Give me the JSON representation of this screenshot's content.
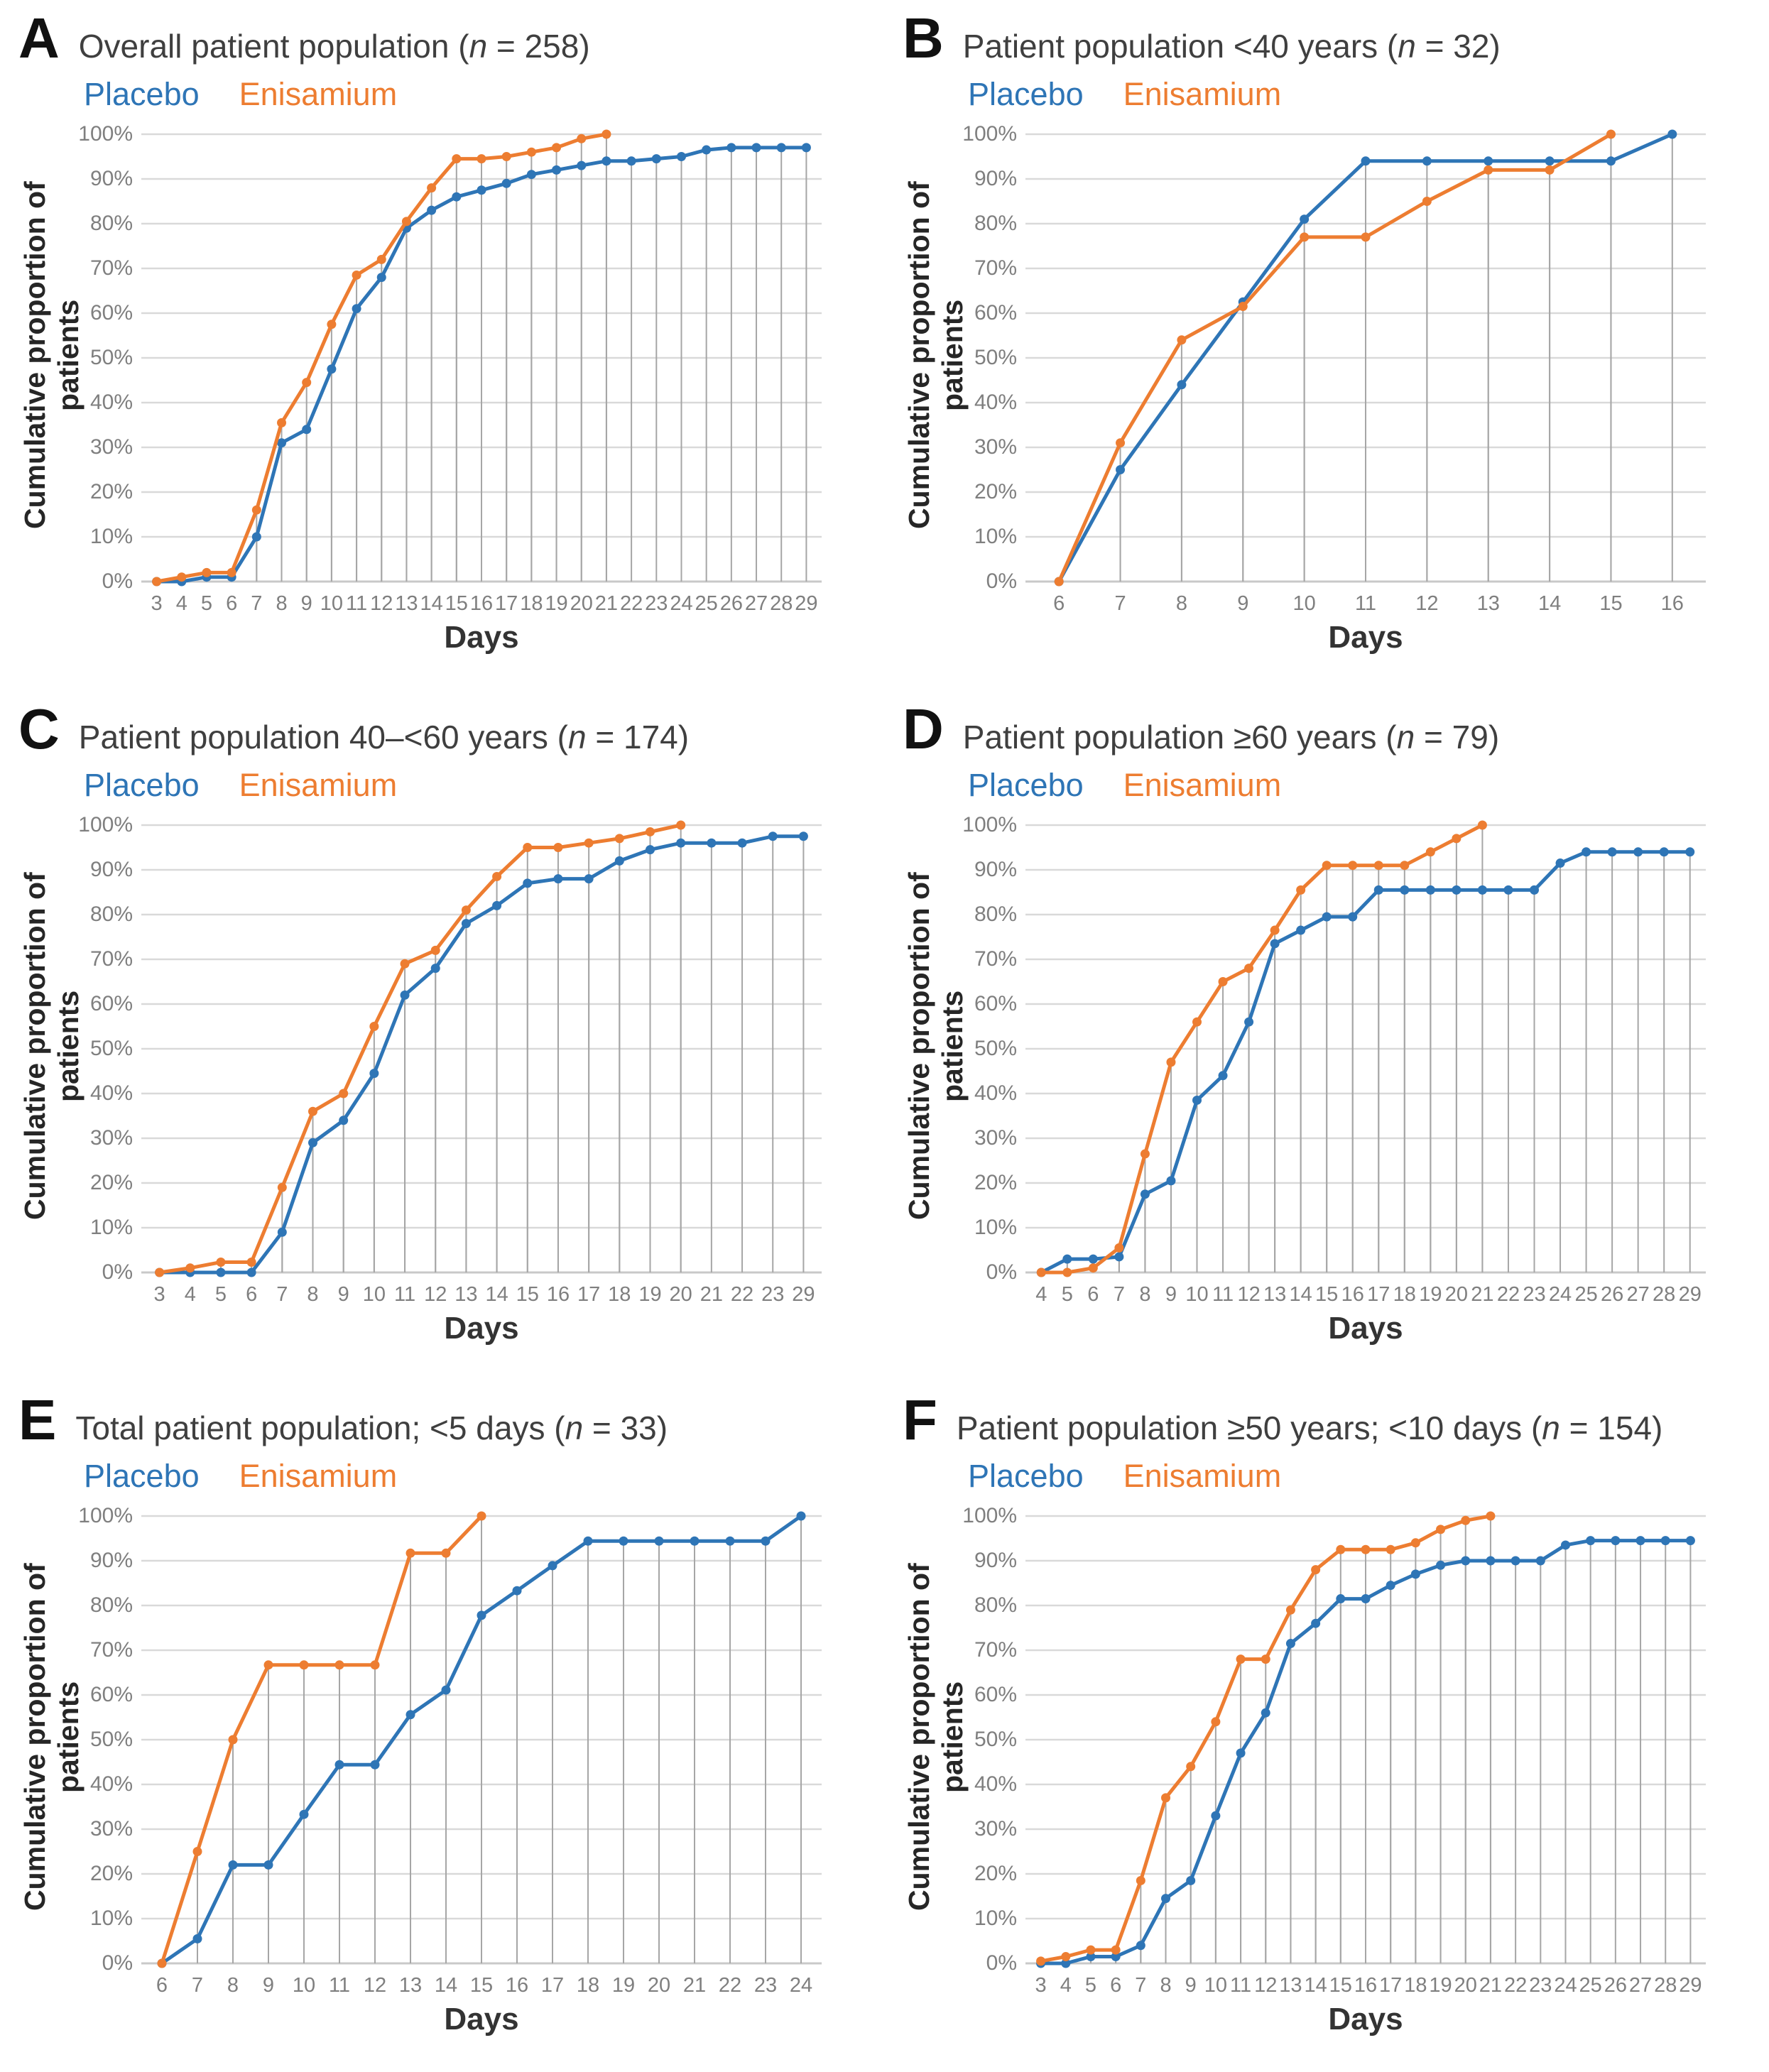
{
  "figure": {
    "y_axis_title": "Cumulative proportion of patients",
    "x_axis_title": "Days",
    "y_tick_labels": [
      "0%",
      "10%",
      "20%",
      "30%",
      "40%",
      "50%",
      "60%",
      "70%",
      "80%",
      "90%",
      "100%"
    ]
  },
  "legend": {
    "placebo_label": "Placebo",
    "enisamium_label": "Enisamium"
  },
  "colors": {
    "placebo": "#2E75B6",
    "enisamium": "#ED7D31",
    "gridline": "#D9D9D9",
    "axis_line": "#C9C9C9",
    "dropline": "#A6A6A6",
    "tick_label": "#7F7F7F",
    "axis_title": "#333333",
    "panel_title": "#3F3F3F",
    "panel_letter": "#111111"
  },
  "chart_data": [
    {
      "type": "line",
      "panel": "A",
      "title": "Overall patient population (n = 258)",
      "xlabel": "Days",
      "ylabel": "Cumulative proportion of patients",
      "ylim": [
        0,
        100
      ],
      "categories": [
        3,
        4,
        5,
        6,
        7,
        8,
        9,
        10,
        11,
        12,
        13,
        14,
        15,
        16,
        17,
        18,
        19,
        20,
        21,
        22,
        23,
        24,
        25,
        26,
        27,
        28,
        29
      ],
      "series": [
        {
          "name": "Placebo",
          "values": [
            0,
            0,
            1,
            1,
            10,
            31,
            34,
            47.5,
            61,
            68,
            79,
            83,
            86,
            87.5,
            89,
            91,
            92,
            93,
            94,
            94,
            94.5,
            95,
            96.5,
            97,
            97,
            97,
            97
          ]
        },
        {
          "name": "Enisamium",
          "values": [
            0,
            1,
            2,
            2,
            16,
            35.5,
            44.5,
            57.5,
            68.5,
            72,
            80.5,
            88,
            94.5,
            94.5,
            95,
            96,
            97,
            99,
            100
          ]
        }
      ]
    },
    {
      "type": "line",
      "panel": "B",
      "title": "Patient population <40 years (n = 32)",
      "xlabel": "Days",
      "ylabel": "Cumulative proportion of patients",
      "ylim": [
        0,
        100
      ],
      "categories": [
        6,
        7,
        8,
        9,
        10,
        11,
        12,
        13,
        14,
        15,
        16
      ],
      "series": [
        {
          "name": "Placebo",
          "values": [
            0,
            25,
            44,
            62.5,
            81,
            94,
            94,
            94,
            94,
            94,
            100
          ]
        },
        {
          "name": "Enisamium",
          "values": [
            0,
            31,
            54,
            61.5,
            77,
            77,
            85,
            92,
            92,
            100
          ]
        }
      ]
    },
    {
      "type": "line",
      "panel": "C",
      "title": "Patient population 40–<60 years (n = 174)",
      "xlabel": "Days",
      "ylabel": "Cumulative proportion of patients",
      "ylim": [
        0,
        100
      ],
      "categories": [
        3,
        4,
        5,
        6,
        7,
        8,
        9,
        10,
        11,
        12,
        13,
        14,
        15,
        16,
        17,
        18,
        19,
        20,
        21,
        22,
        23,
        29
      ],
      "series": [
        {
          "name": "Placebo",
          "values": [
            0,
            0,
            0,
            0,
            9,
            29,
            34,
            44.5,
            62,
            68,
            78,
            82,
            87,
            88,
            88,
            92,
            94.5,
            96,
            96,
            96,
            97.5,
            97.5
          ]
        },
        {
          "name": "Enisamium",
          "values": [
            0,
            1,
            2.3,
            2.3,
            19,
            36,
            40,
            55,
            69,
            72,
            81,
            88.5,
            95,
            95,
            96,
            97,
            98.5,
            100
          ]
        }
      ]
    },
    {
      "type": "line",
      "panel": "D",
      "title": "Patient population ≥60 years (n = 79)",
      "xlabel": "Days",
      "ylabel": "Cumulative proportion of patients",
      "ylim": [
        0,
        100
      ],
      "categories": [
        4,
        5,
        6,
        7,
        8,
        9,
        10,
        11,
        12,
        13,
        14,
        15,
        16,
        17,
        18,
        19,
        20,
        21,
        22,
        23,
        24,
        25,
        26,
        27,
        28,
        29
      ],
      "series": [
        {
          "name": "Placebo",
          "values": [
            0,
            3,
            3,
            3.5,
            17.5,
            20.5,
            38.5,
            44,
            56,
            73.5,
            76.5,
            79.5,
            79.5,
            85.5,
            85.5,
            85.5,
            85.5,
            85.5,
            85.5,
            85.5,
            91.5,
            94,
            94,
            94,
            94,
            94
          ]
        },
        {
          "name": "Enisamium",
          "values": [
            0,
            0,
            1,
            5.5,
            26.5,
            47,
            56,
            65,
            68,
            76.5,
            85.5,
            91,
            91,
            91,
            91,
            94,
            97,
            100
          ]
        }
      ]
    },
    {
      "type": "line",
      "panel": "E",
      "title": "Total patient population; <5 days (n = 33)",
      "xlabel": "Days",
      "ylabel": "Cumulative proportion of patients",
      "ylim": [
        0,
        100
      ],
      "categories": [
        6,
        7,
        8,
        9,
        10,
        11,
        12,
        13,
        14,
        15,
        16,
        17,
        18,
        19,
        20,
        21,
        22,
        23,
        24
      ],
      "series": [
        {
          "name": "Placebo",
          "values": [
            0,
            5.5,
            22,
            22,
            33.3,
            44.4,
            44.4,
            55.6,
            61.1,
            77.8,
            83.3,
            88.9,
            94.4,
            94.4,
            94.4,
            94.4,
            94.4,
            94.4,
            100
          ]
        },
        {
          "name": "Enisamium",
          "values": [
            0,
            25,
            50,
            66.7,
            66.7,
            66.7,
            66.7,
            91.7,
            91.7,
            100
          ]
        }
      ]
    },
    {
      "type": "line",
      "panel": "F",
      "title": "Patient population ≥50 years; <10 days (n = 154)",
      "xlabel": "Days",
      "ylabel": "Cumulative proportion of patients",
      "ylim": [
        0,
        100
      ],
      "categories": [
        3,
        4,
        5,
        6,
        7,
        8,
        9,
        10,
        11,
        12,
        13,
        14,
        15,
        16,
        17,
        18,
        19,
        20,
        21,
        22,
        23,
        24,
        25,
        26,
        27,
        28,
        29
      ],
      "series": [
        {
          "name": "Placebo",
          "values": [
            0,
            0,
            1.5,
            1.5,
            4,
            14.5,
            18.5,
            33,
            47,
            56,
            71.5,
            76,
            81.5,
            81.5,
            84.5,
            87,
            89,
            90,
            90,
            90,
            90,
            93.5,
            94.5,
            94.5,
            94.5,
            94.5,
            94.5
          ]
        },
        {
          "name": "Enisamium",
          "values": [
            0.5,
            1.5,
            3,
            3,
            18.5,
            37,
            44,
            54,
            68,
            68,
            79,
            88,
            92.5,
            92.5,
            92.5,
            94,
            97,
            99,
            100
          ]
        }
      ]
    }
  ]
}
